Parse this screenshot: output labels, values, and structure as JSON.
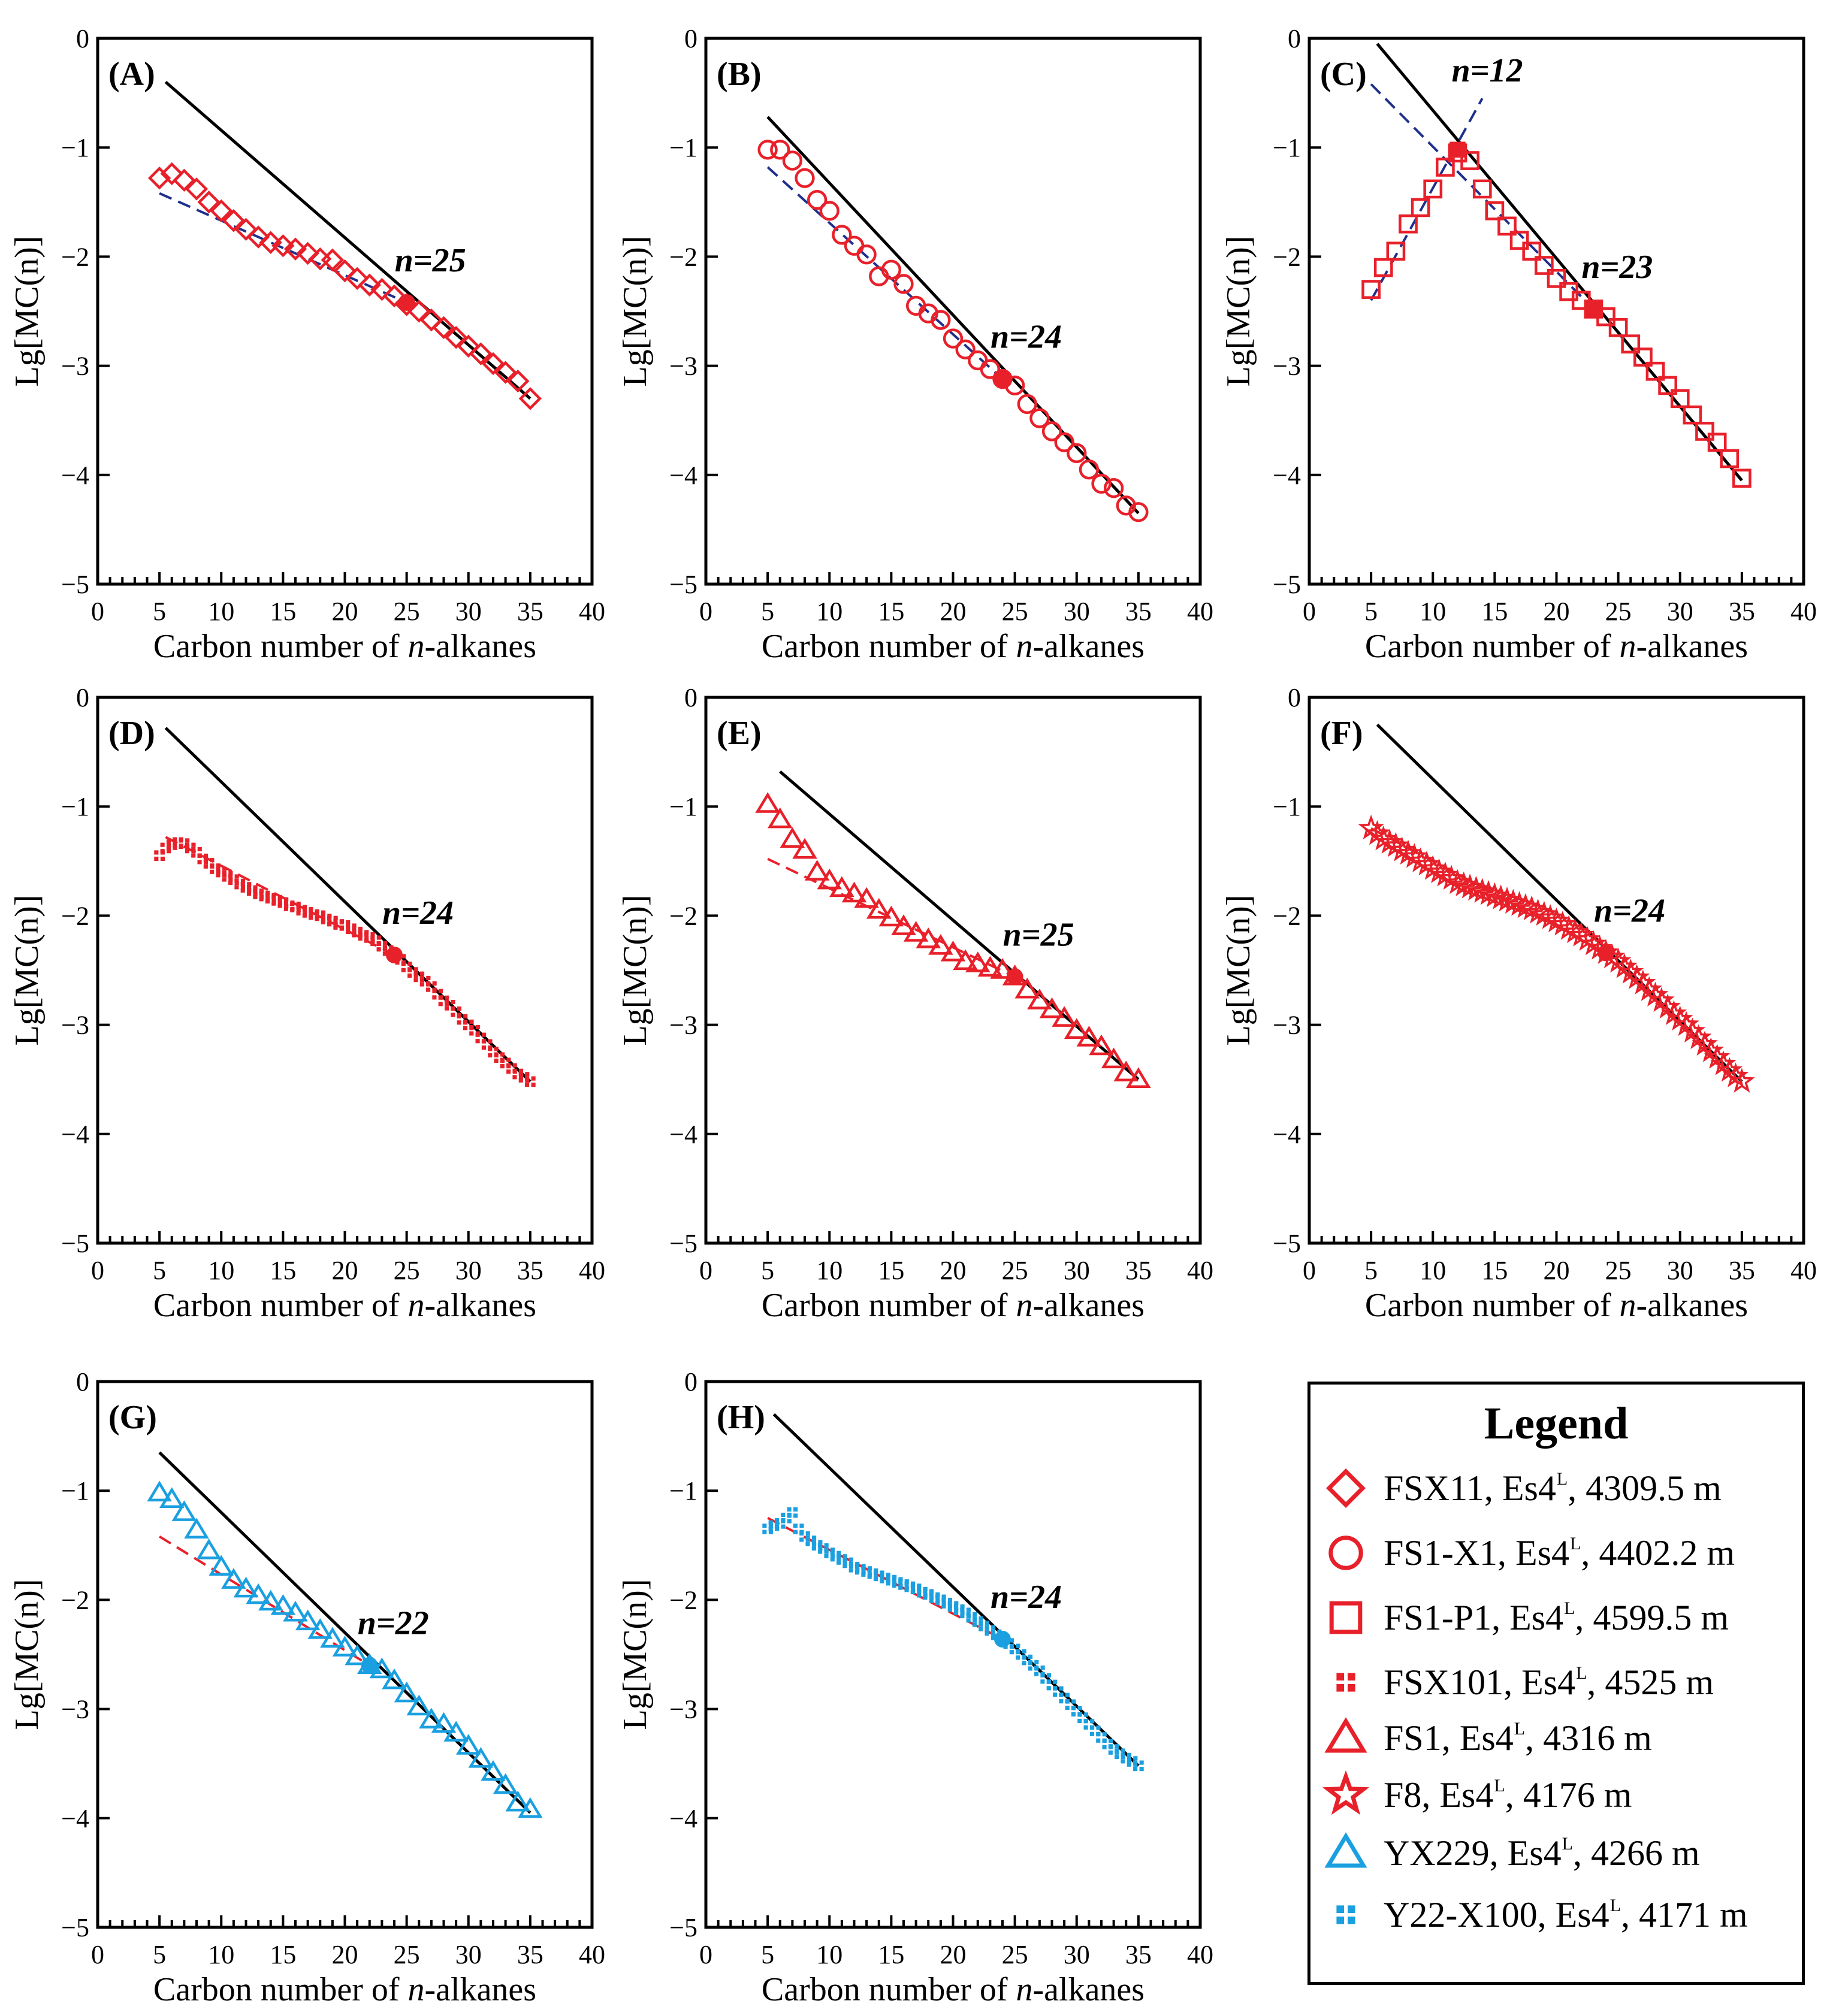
{
  "figure": {
    "xlabel_prefix": "Carbon number of ",
    "xlabel_italic": "n",
    "xlabel_suffix": "-alkanes",
    "ylabel": "Lg[MC(n)]"
  },
  "chart_data": [
    {
      "type": "scatter",
      "panel": "(A)",
      "sample": "FSX11",
      "title": "(A)",
      "xlabel": "Carbon number of n-alkanes",
      "ylabel": "Lg[MC(n)]",
      "xlim": [
        0,
        40
      ],
      "ylim": [
        -5,
        0
      ],
      "xticks": [
        0,
        5,
        10,
        15,
        20,
        25,
        30,
        35,
        40
      ],
      "yticks": [
        0,
        -1,
        -2,
        -3,
        -4,
        -5
      ],
      "marker": "diamond",
      "color": "#e8202a",
      "x": [
        5,
        6,
        7,
        8,
        9,
        10,
        11,
        12,
        13,
        14,
        15,
        16,
        17,
        18,
        19,
        20,
        21,
        22,
        23,
        24,
        25,
        26,
        27,
        28,
        29,
        30,
        31,
        32,
        33,
        34,
        35
      ],
      "y": [
        -1.28,
        -1.24,
        -1.3,
        -1.38,
        -1.5,
        -1.58,
        -1.67,
        -1.75,
        -1.82,
        -1.87,
        -1.9,
        -1.93,
        -1.97,
        -2.02,
        -2.03,
        -2.13,
        -2.2,
        -2.26,
        -2.3,
        -2.36,
        -2.44,
        -2.5,
        -2.58,
        -2.65,
        -2.74,
        -2.82,
        -2.89,
        -2.98,
        -3.06,
        -3.14,
        -3.3
      ],
      "breakpoint": {
        "x": 25,
        "y": -2.42,
        "label": "n=25"
      },
      "fit_long": {
        "x": [
          5.5,
          35
        ],
        "y": [
          -0.4,
          -3.3
        ],
        "color": "#000000"
      },
      "fit_short": {
        "x": [
          5,
          25
        ],
        "y": [
          -1.42,
          -2.42
        ],
        "color": "#1e2f8c"
      }
    },
    {
      "type": "scatter",
      "panel": "(B)",
      "sample": "FS1-X1",
      "title": "(B)",
      "xlabel": "Carbon number of n-alkanes",
      "ylabel": "Lg[MC(n)]",
      "xlim": [
        0,
        40
      ],
      "ylim": [
        -5,
        0
      ],
      "xticks": [
        0,
        5,
        10,
        15,
        20,
        25,
        30,
        35,
        40
      ],
      "yticks": [
        0,
        -1,
        -2,
        -3,
        -4,
        -5
      ],
      "marker": "circle",
      "color": "#e8202a",
      "x": [
        5,
        6,
        7,
        8,
        9,
        10,
        11,
        12,
        13,
        14,
        15,
        16,
        17,
        18,
        19,
        20,
        21,
        22,
        23,
        24,
        25,
        26,
        27,
        28,
        29,
        30,
        31,
        32,
        33,
        34,
        35
      ],
      "y": [
        -1.02,
        -1.02,
        -1.12,
        -1.28,
        -1.48,
        -1.58,
        -1.8,
        -1.9,
        -1.98,
        -2.18,
        -2.12,
        -2.25,
        -2.45,
        -2.52,
        -2.58,
        -2.75,
        -2.85,
        -2.95,
        -3.03,
        -3.12,
        -3.18,
        -3.35,
        -3.48,
        -3.6,
        -3.7,
        -3.8,
        -3.95,
        -4.08,
        -4.12,
        -4.28,
        -4.34
      ],
      "breakpoint": {
        "x": 24,
        "y": -3.12,
        "label": "n=24"
      },
      "fit_long": {
        "x": [
          5,
          35
        ],
        "y": [
          -0.72,
          -4.35
        ],
        "color": "#000000"
      },
      "fit_short": {
        "x": [
          5,
          24
        ],
        "y": [
          -1.18,
          -3.12
        ],
        "color": "#1e2f8c"
      }
    },
    {
      "type": "scatter",
      "panel": "(C)",
      "sample": "FS1-P1",
      "title": "(C)",
      "xlabel": "Carbon number of n-alkanes",
      "ylabel": "Lg[MC(n)]",
      "xlim": [
        0,
        40
      ],
      "ylim": [
        -5,
        0
      ],
      "xticks": [
        0,
        5,
        10,
        15,
        20,
        25,
        30,
        35,
        40
      ],
      "yticks": [
        0,
        -1,
        -2,
        -3,
        -4,
        -5
      ],
      "marker": "square",
      "color": "#e8202a",
      "x": [
        5,
        6,
        7,
        8,
        9,
        10,
        11,
        12,
        13,
        14,
        15,
        16,
        17,
        18,
        19,
        20,
        21,
        22,
        23,
        24,
        25,
        26,
        27,
        28,
        29,
        30,
        31,
        32,
        33,
        34,
        35
      ],
      "y": [
        -2.3,
        -2.1,
        -1.95,
        -1.7,
        -1.55,
        -1.38,
        -1.18,
        -1.05,
        -1.12,
        -1.38,
        -1.58,
        -1.72,
        -1.85,
        -1.95,
        -2.08,
        -2.2,
        -2.32,
        -2.4,
        -2.48,
        -2.55,
        -2.65,
        -2.8,
        -2.92,
        -3.05,
        -3.18,
        -3.3,
        -3.45,
        -3.6,
        -3.7,
        -3.85,
        -4.03
      ],
      "breakpoint": {
        "x": 23,
        "y": -2.48,
        "label": "n=23"
      },
      "breakpoint2": {
        "x": 12,
        "y": -1.02,
        "label": "n=12"
      },
      "fit_long": {
        "x": [
          5.5,
          35
        ],
        "y": [
          -0.05,
          -4.05
        ],
        "color": "#000000"
      },
      "fit_short": {
        "x": [
          5,
          23
        ],
        "y": [
          -0.42,
          -2.48
        ],
        "color": "#1e2f8c"
      },
      "fit_rise": {
        "x": [
          5,
          14
        ],
        "y": [
          -2.4,
          -0.55
        ],
        "color": "#1e2f8c"
      }
    },
    {
      "type": "scatter",
      "panel": "(D)",
      "sample": "FSX101",
      "title": "(D)",
      "xlabel": "Carbon number of n-alkanes",
      "ylabel": "Lg[MC(n)]",
      "xlim": [
        0,
        40
      ],
      "ylim": [
        -5,
        0
      ],
      "xticks": [
        0,
        5,
        10,
        15,
        20,
        25,
        30,
        35,
        40
      ],
      "yticks": [
        0,
        -1,
        -2,
        -3,
        -4,
        -5
      ],
      "marker": "dotsquare",
      "color": "#e8202a",
      "x": [
        5,
        5.5,
        6,
        6.5,
        7,
        7.5,
        8,
        8.5,
        9,
        9.5,
        10,
        10.5,
        11,
        11.5,
        12,
        12.5,
        13,
        13.5,
        14,
        14.5,
        15,
        15.5,
        16,
        16.5,
        17,
        17.5,
        18,
        18.5,
        19,
        19.5,
        20,
        20.5,
        21,
        21.5,
        22,
        22.5,
        23,
        23.5,
        24,
        24.5,
        25,
        25.5,
        26,
        26.5,
        27,
        27.5,
        28,
        28.5,
        29,
        29.5,
        30,
        30.5,
        31,
        31.5,
        32,
        32.5,
        33,
        33.5,
        34,
        34.5,
        35
      ],
      "y": [
        -1.45,
        -1.38,
        -1.35,
        -1.33,
        -1.34,
        -1.38,
        -1.42,
        -1.48,
        -1.52,
        -1.57,
        -1.6,
        -1.64,
        -1.67,
        -1.71,
        -1.74,
        -1.77,
        -1.8,
        -1.82,
        -1.84,
        -1.86,
        -1.88,
        -1.91,
        -1.92,
        -1.95,
        -1.97,
        -1.99,
        -2.0,
        -2.03,
        -2.05,
        -2.08,
        -2.09,
        -2.12,
        -2.15,
        -2.18,
        -2.2,
        -2.23,
        -2.28,
        -2.32,
        -2.36,
        -2.4,
        -2.47,
        -2.52,
        -2.56,
        -2.6,
        -2.65,
        -2.72,
        -2.78,
        -2.82,
        -2.88,
        -2.95,
        -3.0,
        -3.05,
        -3.12,
        -3.18,
        -3.25,
        -3.3,
        -3.35,
        -3.4,
        -3.45,
        -3.48,
        -3.52
      ],
      "breakpoint": {
        "x": 24,
        "y": -2.36,
        "label": "n=24"
      },
      "fit_long": {
        "x": [
          5.5,
          35
        ],
        "y": [
          -0.28,
          -3.52
        ],
        "color": "#000000"
      },
      "fit_short": {
        "x": [
          5.5,
          24
        ],
        "y": [
          -1.28,
          -2.36
        ],
        "color": "#e8202a"
      }
    },
    {
      "type": "scatter",
      "panel": "(E)",
      "sample": "FS1",
      "title": "(E)",
      "xlabel": "Carbon number of n-alkanes",
      "ylabel": "Lg[MC(n)]",
      "xlim": [
        0,
        40
      ],
      "ylim": [
        -5,
        0
      ],
      "xticks": [
        0,
        5,
        10,
        15,
        20,
        25,
        30,
        35,
        40
      ],
      "yticks": [
        0,
        -1,
        -2,
        -3,
        -4,
        -5
      ],
      "marker": "triangle",
      "color": "#e8202a",
      "x": [
        5,
        6,
        7,
        8,
        9,
        10,
        11,
        12,
        13,
        14,
        15,
        16,
        17,
        18,
        19,
        20,
        21,
        22,
        23,
        24,
        25,
        26,
        27,
        28,
        29,
        30,
        31,
        32,
        33,
        34,
        35
      ],
      "y": [
        -0.98,
        -1.12,
        -1.3,
        -1.4,
        -1.6,
        -1.68,
        -1.75,
        -1.8,
        -1.85,
        -1.95,
        -2.02,
        -2.1,
        -2.16,
        -2.22,
        -2.28,
        -2.34,
        -2.42,
        -2.44,
        -2.48,
        -2.5,
        -2.56,
        -2.68,
        -2.78,
        -2.86,
        -2.94,
        -3.05,
        -3.12,
        -3.2,
        -3.32,
        -3.44,
        -3.5
      ],
      "breakpoint": {
        "x": 25,
        "y": -2.56,
        "label": "n=25"
      },
      "fit_long": {
        "x": [
          6,
          35
        ],
        "y": [
          -0.68,
          -3.5
        ],
        "color": "#000000"
      },
      "fit_short": {
        "x": [
          5,
          25
        ],
        "y": [
          -1.48,
          -2.56
        ],
        "color": "#e8202a"
      }
    },
    {
      "type": "scatter",
      "panel": "(F)",
      "sample": "F8",
      "title": "(F)",
      "xlabel": "Carbon number of n-alkanes",
      "ylabel": "Lg[MC(n)]",
      "xlim": [
        0,
        40
      ],
      "ylim": [
        -5,
        0
      ],
      "xticks": [
        0,
        5,
        10,
        15,
        20,
        25,
        30,
        35,
        40
      ],
      "yticks": [
        0,
        -1,
        -2,
        -3,
        -4,
        -5
      ],
      "marker": "star",
      "color": "#e8202a",
      "x": [
        5,
        5.5,
        6,
        6.5,
        7,
        7.5,
        8,
        8.5,
        9,
        9.5,
        10,
        10.5,
        11,
        11.5,
        12,
        12.5,
        13,
        13.5,
        14,
        14.5,
        15,
        15.5,
        16,
        16.5,
        17,
        17.5,
        18,
        18.5,
        19,
        19.5,
        20,
        20.5,
        21,
        21.5,
        22,
        22.5,
        23,
        23.5,
        24,
        24.5,
        25,
        25.5,
        26,
        26.5,
        27,
        27.5,
        28,
        28.5,
        29,
        29.5,
        30,
        30.5,
        31,
        31.5,
        32,
        32.5,
        33,
        33.5,
        34,
        34.5,
        35
      ],
      "y": [
        -1.2,
        -1.25,
        -1.3,
        -1.33,
        -1.36,
        -1.4,
        -1.43,
        -1.46,
        -1.5,
        -1.53,
        -1.57,
        -1.6,
        -1.63,
        -1.66,
        -1.7,
        -1.72,
        -1.74,
        -1.76,
        -1.78,
        -1.8,
        -1.82,
        -1.84,
        -1.86,
        -1.88,
        -1.9,
        -1.92,
        -1.94,
        -1.97,
        -1.99,
        -2.02,
        -2.05,
        -2.08,
        -2.12,
        -2.15,
        -2.18,
        -2.22,
        -2.26,
        -2.3,
        -2.34,
        -2.38,
        -2.42,
        -2.47,
        -2.52,
        -2.57,
        -2.62,
        -2.68,
        -2.73,
        -2.78,
        -2.84,
        -2.9,
        -2.95,
        -3.0,
        -3.06,
        -3.12,
        -3.18,
        -3.24,
        -3.3,
        -3.36,
        -3.42,
        -3.47,
        -3.52
      ],
      "breakpoint": {
        "x": 24,
        "y": -2.34,
        "label": "n=24"
      },
      "fit_long": {
        "x": [
          5.5,
          35
        ],
        "y": [
          -0.25,
          -3.52
        ],
        "color": "#000000"
      },
      "fit_short": {
        "x": [
          5,
          24
        ],
        "y": [
          -1.2,
          -2.34
        ],
        "color": "#e8202a"
      }
    },
    {
      "type": "scatter",
      "panel": "(G)",
      "sample": "YX229",
      "title": "(G)",
      "xlabel": "Carbon number of n-alkanes",
      "ylabel": "Lg[MC(n)]",
      "xlim": [
        0,
        40
      ],
      "ylim": [
        -5,
        0
      ],
      "xticks": [
        0,
        5,
        10,
        15,
        20,
        25,
        30,
        35,
        40
      ],
      "yticks": [
        0,
        -1,
        -2,
        -3,
        -4,
        -5
      ],
      "marker": "triangle",
      "color": "#1aa0e0",
      "x": [
        5,
        6,
        7,
        8,
        9,
        10,
        11,
        12,
        13,
        14,
        15,
        16,
        17,
        18,
        19,
        20,
        21,
        22,
        23,
        24,
        25,
        26,
        27,
        28,
        29,
        30,
        31,
        32,
        33,
        34,
        35
      ],
      "y": [
        -1.02,
        -1.08,
        -1.2,
        -1.36,
        -1.55,
        -1.7,
        -1.82,
        -1.9,
        -1.96,
        -2.02,
        -2.06,
        -2.12,
        -2.2,
        -2.28,
        -2.36,
        -2.44,
        -2.52,
        -2.6,
        -2.64,
        -2.74,
        -2.86,
        -2.98,
        -3.1,
        -3.14,
        -3.22,
        -3.34,
        -3.46,
        -3.58,
        -3.7,
        -3.86,
        -3.92
      ],
      "breakpoint": {
        "x": 22,
        "y": -2.6,
        "label": "n=22"
      },
      "fit_long": {
        "x": [
          5,
          35
        ],
        "y": [
          -0.65,
          -3.95
        ],
        "color": "#000000"
      },
      "fit_short": {
        "x": [
          5,
          22
        ],
        "y": [
          -1.42,
          -2.6
        ],
        "color": "#e8202a"
      }
    },
    {
      "type": "scatter",
      "panel": "(H)",
      "sample": "Y22-X100",
      "title": "(H)",
      "xlabel": "Carbon number of n-alkanes",
      "ylabel": "Lg[MC(n)]",
      "xlim": [
        0,
        40
      ],
      "ylim": [
        -5,
        0
      ],
      "xticks": [
        0,
        5,
        10,
        15,
        20,
        25,
        30,
        35,
        40
      ],
      "yticks": [
        0,
        -1,
        -2,
        -3,
        -4,
        -5
      ],
      "marker": "dotsquare",
      "color": "#1aa0e0",
      "x": [
        5,
        5.5,
        6,
        6.5,
        7,
        7.5,
        8,
        8.5,
        9,
        9.5,
        10,
        10.5,
        11,
        11.5,
        12,
        12.5,
        13,
        13.5,
        14,
        14.5,
        15,
        15.5,
        16,
        16.5,
        17,
        17.5,
        18,
        18.5,
        19,
        19.5,
        20,
        20.5,
        21,
        21.5,
        22,
        22.5,
        23,
        23.5,
        24,
        24.5,
        25,
        25.5,
        26,
        26.5,
        27,
        27.5,
        28,
        28.5,
        29,
        29.5,
        30,
        30.5,
        31,
        31.5,
        32,
        32.5,
        33,
        33.5,
        34,
        34.5,
        35
      ],
      "y": [
        -1.35,
        -1.32,
        -1.3,
        -1.25,
        -1.2,
        -1.35,
        -1.42,
        -1.46,
        -1.5,
        -1.53,
        -1.57,
        -1.6,
        -1.63,
        -1.66,
        -1.7,
        -1.72,
        -1.74,
        -1.76,
        -1.78,
        -1.8,
        -1.82,
        -1.84,
        -1.86,
        -1.88,
        -1.9,
        -1.93,
        -1.95,
        -1.98,
        -2.0,
        -2.03,
        -2.06,
        -2.09,
        -2.12,
        -2.16,
        -2.2,
        -2.24,
        -2.28,
        -2.32,
        -2.36,
        -2.4,
        -2.45,
        -2.5,
        -2.55,
        -2.6,
        -2.65,
        -2.72,
        -2.78,
        -2.84,
        -2.9,
        -2.96,
        -3.02,
        -3.08,
        -3.14,
        -3.2,
        -3.26,
        -3.32,
        -3.37,
        -3.41,
        -3.45,
        -3.48,
        -3.52
      ],
      "breakpoint": {
        "x": 24,
        "y": -2.36,
        "label": "n=24"
      },
      "fit_long": {
        "x": [
          5.5,
          35
        ],
        "y": [
          -0.3,
          -3.52
        ],
        "color": "#000000"
      },
      "fit_short": {
        "x": [
          5,
          24
        ],
        "y": [
          -1.25,
          -2.36
        ],
        "color": "#e8202a"
      }
    }
  ],
  "legend": {
    "title": "Legend",
    "items": [
      {
        "marker": "diamond",
        "color": "#e8202a",
        "well": "FSX11",
        "formation": "Es4",
        "sup": "L",
        "depth": "4309.5 m"
      },
      {
        "marker": "circle",
        "color": "#e8202a",
        "well": "FS1-X1",
        "formation": "Es4",
        "sup": "L",
        "depth": "4402.2 m"
      },
      {
        "marker": "square",
        "color": "#e8202a",
        "well": "FS1-P1",
        "formation": "Es4",
        "sup": "L",
        "depth": "4599.5 m"
      },
      {
        "marker": "dotsquare",
        "color": "#e8202a",
        "well": "FSX101",
        "formation": "Es4",
        "sup": "L",
        "depth": "4525 m"
      },
      {
        "marker": "triangle",
        "color": "#e8202a",
        "well": "FS1",
        "formation": "Es4",
        "sup": "L",
        "depth": "4316 m"
      },
      {
        "marker": "star",
        "color": "#e8202a",
        "well": "F8",
        "formation": "Es4",
        "sup": "L",
        "depth": "4176 m"
      },
      {
        "marker": "triangle",
        "color": "#1aa0e0",
        "well": "YX229",
        "formation": "Es4",
        "sup": "L",
        "depth": "4266 m"
      },
      {
        "marker": "dotsquare",
        "color": "#1aa0e0",
        "well": "Y22-X100",
        "formation": "Es4",
        "sup": "L",
        "depth": "4171 m"
      }
    ]
  }
}
